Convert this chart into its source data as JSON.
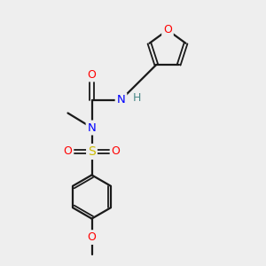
{
  "bg_color": "#eeeeee",
  "bond_color": "#1a1a1a",
  "atom_colors": {
    "O": "#ff0000",
    "N": "#0000ff",
    "S": "#ccbb00",
    "H": "#4a8888",
    "C": "#1a1a1a"
  },
  "figsize": [
    3.0,
    3.0
  ],
  "dpi": 100
}
